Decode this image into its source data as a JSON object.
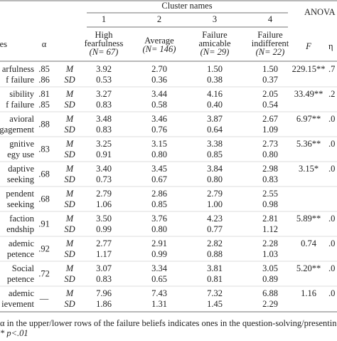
{
  "header": {
    "group_title": "Cluster names",
    "anova_title": "ANOVA",
    "variable_label": "es",
    "alpha_label": "α",
    "cluster_numbers": [
      "1",
      "2",
      "3",
      "4"
    ],
    "clusters": [
      {
        "name": [
          "High",
          "fearfulness"
        ],
        "n": "(N= 67)"
      },
      {
        "name": [
          "Average"
        ],
        "n": "(N= 146)"
      },
      {
        "name": [
          "Failure",
          "amicable"
        ],
        "n": "(N= 29)"
      },
      {
        "name": [
          "Failure",
          "indifferent"
        ],
        "n": "(N= 22)"
      }
    ],
    "f_label": "F",
    "eta_label": "η"
  },
  "stat_labels": [
    "M",
    "SD"
  ],
  "rows": [
    {
      "label": [
        "arfulness",
        "f failure"
      ],
      "alpha": [
        ".85",
        ".86"
      ],
      "m": [
        "3.92",
        "2.70",
        "1.50",
        "1.50"
      ],
      "sd": [
        "0.53",
        "0.36",
        "0.38",
        "0.37"
      ],
      "f": "229.15**",
      "eta": ".7"
    },
    {
      "label": [
        "sibility",
        "f failure"
      ],
      "alpha": [
        ".81",
        ".85"
      ],
      "m": [
        "3.27",
        "3.44",
        "4.16",
        "2.05"
      ],
      "sd": [
        "0.83",
        "0.58",
        "0.40",
        "0.54"
      ],
      "f": "33.49**",
      "eta": ".2"
    },
    {
      "label": [
        "avioral",
        "gagement"
      ],
      "alpha": [
        ".88"
      ],
      "m": [
        "3.48",
        "3.46",
        "3.87",
        "2.67"
      ],
      "sd": [
        "0.83",
        "0.76",
        "0.64",
        "1.09"
      ],
      "f": "6.97**",
      "eta": ".0"
    },
    {
      "label": [
        "gnitive",
        "egy use"
      ],
      "alpha": [
        ".83"
      ],
      "m": [
        "3.25",
        "3.15",
        "3.38",
        "2.73"
      ],
      "sd": [
        "0.91",
        "0.80",
        "0.85",
        "0.80"
      ],
      "f": "5.36**",
      "eta": ".0"
    },
    {
      "label": [
        "daptive",
        "seeking"
      ],
      "alpha": [
        ".68"
      ],
      "m": [
        "3.40",
        "3.45",
        "3.84",
        "2.98"
      ],
      "sd": [
        "0.73",
        "0.67",
        "0.80",
        "0.83"
      ],
      "f": "3.15*",
      "eta": ".0"
    },
    {
      "label": [
        "pendent",
        "seeking"
      ],
      "alpha": [
        ".68"
      ],
      "m": [
        "2.79",
        "2.86",
        "2.79",
        "2.55"
      ],
      "sd": [
        "1.06",
        "0.85",
        "1.00",
        "0.98"
      ]
    },
    {
      "label": [
        "faction",
        "endship"
      ],
      "alpha": [
        ".91"
      ],
      "m": [
        "3.50",
        "3.76",
        "4.23",
        "2.81"
      ],
      "sd": [
        "0.99",
        "0.80",
        "0.77",
        "1.12"
      ],
      "f": "5.89**",
      "eta": ".0"
    },
    {
      "label": [
        "ademic",
        "petence"
      ],
      "alpha": [
        ".92"
      ],
      "m": [
        "2.77",
        "2.91",
        "2.82",
        "2.28"
      ],
      "sd": [
        "1.17",
        "0.99",
        "0.88",
        "1.03"
      ],
      "f": "0.74",
      "eta": ".0"
    },
    {
      "label": [
        "Social",
        "petence"
      ],
      "alpha": [
        ".72"
      ],
      "m": [
        "3.07",
        "3.34",
        "3.81",
        "3.05"
      ],
      "sd": [
        "0.83",
        "0.65",
        "0.81",
        "0.89"
      ],
      "f": "5.20**",
      "eta": ".0"
    },
    {
      "label": [
        "ademic",
        "ievement"
      ],
      "alpha": [
        "—"
      ],
      "m": [
        "7.96",
        "7.43",
        "7.32",
        "6.88"
      ],
      "sd": [
        "1.86",
        "1.31",
        "1.45",
        "2.29"
      ],
      "f": "1.16",
      "eta": ".0"
    }
  ],
  "footnotes": [
    "α in the upper/lower rows of the failure beliefs indicates ones in the question-solving/presentin",
    "* p<.01"
  ]
}
